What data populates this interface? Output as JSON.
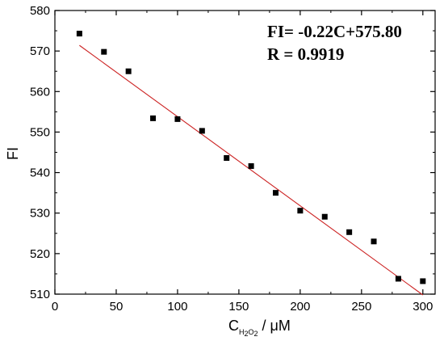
{
  "chart_data": {
    "type": "scatter",
    "title": "",
    "ylabel": "FI",
    "xlabel": {
      "main": "C",
      "sub_main": "H",
      "sub_2a": "2",
      "sub_o": "O",
      "sub_2b": "2",
      "rest": " / μM"
    },
    "xlim": [
      0,
      310
    ],
    "ylim": [
      510,
      580
    ],
    "xticks": [
      0,
      50,
      100,
      150,
      200,
      250,
      300
    ],
    "yticks": [
      510,
      520,
      530,
      540,
      550,
      560,
      570,
      580
    ],
    "x": [
      20,
      40,
      60,
      80,
      100,
      120,
      140,
      160,
      180,
      200,
      220,
      240,
      260,
      280,
      300
    ],
    "y": [
      574.3,
      569.8,
      565.0,
      553.4,
      553.2,
      550.3,
      543.6,
      541.6,
      535.0,
      530.6,
      529.1,
      525.3,
      523.0,
      513.8,
      513.2
    ],
    "fit": {
      "slope": -0.22,
      "intercept": 575.8,
      "x_range": [
        20,
        300
      ],
      "color": "#cc2222"
    },
    "marker_color": "#000000",
    "annotations": {
      "equation": "FI= -0.22C+575.80",
      "r_value": "R = 0.9919"
    }
  }
}
